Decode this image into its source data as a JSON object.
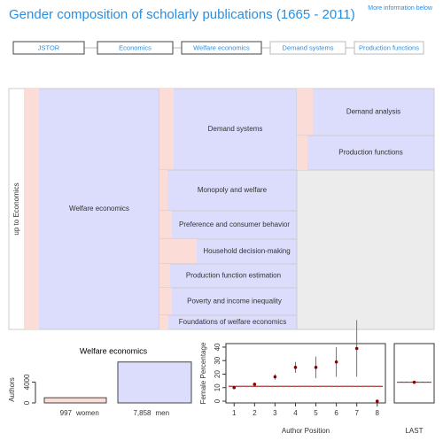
{
  "header": {
    "title": "Gender composition of scholarly publications (1665 - 2011)",
    "link": "More information below"
  },
  "breadcrumb": [
    "JSTOR",
    "Economics",
    "Welfare economics",
    "Demand systems",
    "Production functions"
  ],
  "treemap": {
    "nodes": [
      {
        "label": "up to Economics"
      },
      {
        "label": "Welfare economics"
      },
      {
        "label": "Demand systems"
      },
      {
        "label": "Monopoly and welfare"
      },
      {
        "label": "Preference and consumer behavior"
      },
      {
        "label": "Household decision-making"
      },
      {
        "label": "Production function estimation"
      },
      {
        "label": "Poverty and income inequality"
      },
      {
        "label": "Foundations of welfare economics"
      },
      {
        "label": "Demand analysis"
      },
      {
        "label": "Production functions"
      }
    ]
  },
  "chart_data": [
    {
      "type": "bar",
      "title": "Welfare economics",
      "y_label": "Authors",
      "categories": [
        "women",
        "men"
      ],
      "values": [
        997,
        7858
      ],
      "value_labels": [
        "997",
        "7,858"
      ],
      "colors": [
        "#fcdcd6",
        "#dcdcfc"
      ],
      "ylim": [
        0,
        8500
      ],
      "yticks": [
        0,
        4000
      ]
    },
    {
      "type": "scatter",
      "x_label": "Author Position",
      "y_label": "Female Percentage",
      "x": [
        1,
        2,
        3,
        4,
        5,
        6,
        7,
        8
      ],
      "values": [
        10,
        12.5,
        18,
        25,
        25,
        29,
        39,
        0
      ],
      "errors": [
        1,
        1,
        2,
        4,
        8,
        11,
        21,
        0
      ],
      "reference": 11,
      "color": "#8b0000",
      "xlim": [
        0.6,
        8.4
      ],
      "xticks": [
        1,
        2,
        3,
        4,
        5,
        6,
        7,
        8
      ],
      "ylim": [
        -1.3,
        42.6
      ],
      "yticks": [
        0,
        10,
        20,
        30,
        40
      ]
    },
    {
      "type": "scatter",
      "x_label": "LAST",
      "x": [
        1
      ],
      "values": [
        14
      ],
      "errors": [
        1
      ],
      "reference": 14,
      "color": "#8b0000",
      "xlim": [
        0,
        2
      ],
      "ylim": [
        -1.3,
        42.6
      ]
    }
  ]
}
